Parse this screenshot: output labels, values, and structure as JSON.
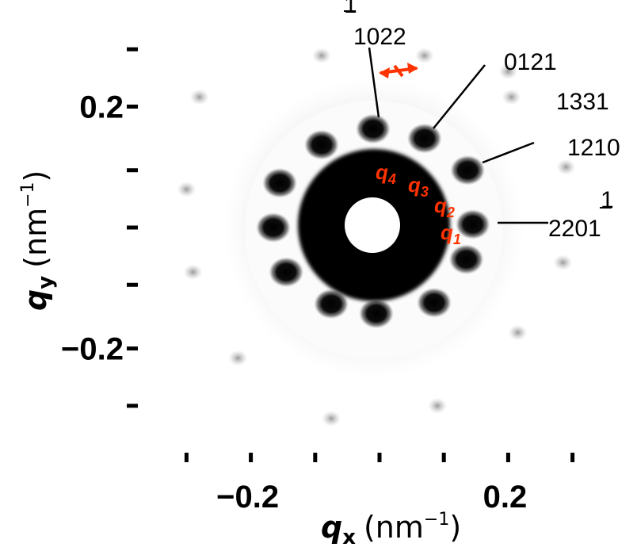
{
  "chart_data": {
    "type": "scatter",
    "title": "",
    "xlabel": {
      "symbol": "q",
      "subscript": "x",
      "unit": "(nm",
      "exponent": "−1",
      "close": ")"
    },
    "ylabel": {
      "symbol": "q",
      "subscript": "y",
      "unit": "(nm",
      "exponent": "−1",
      "close": ")"
    },
    "xlim": [
      -0.3,
      0.3
    ],
    "ylim": [
      -0.28,
      0.29
    ],
    "x_ticks": [
      -0.3,
      -0.2,
      -0.1,
      0,
      0.1,
      0.2,
      0.3
    ],
    "y_ticks": [
      -0.28,
      -0.19,
      -0.09,
      0,
      0.09,
      0.19,
      0.28
    ],
    "x_tick_labels": [
      {
        "value": -0.2,
        "text": "−0.2"
      },
      {
        "value": 0.2,
        "text": "0.2"
      }
    ],
    "y_tick_labels": [
      {
        "value": 0.19,
        "text": "0.2"
      },
      {
        "value": -0.19,
        "text": "−0.2"
      }
    ],
    "grid": false,
    "legend": "none",
    "colors": {
      "spots": "#000000",
      "annotation": "#ff3300",
      "beamstop": "#ffffff"
    },
    "diffraction_spots": [
      {
        "x": -0.01,
        "y": 0.155
      },
      {
        "x": 0.07,
        "y": 0.14
      },
      {
        "x": 0.137,
        "y": 0.09
      },
      {
        "x": 0.145,
        "y": 0.005
      },
      {
        "x": 0.135,
        "y": -0.05
      },
      {
        "x": 0.085,
        "y": -0.118
      },
      {
        "x": -0.005,
        "y": -0.135
      },
      {
        "x": -0.075,
        "y": -0.12
      },
      {
        "x": -0.145,
        "y": -0.07
      },
      {
        "x": -0.165,
        "y": 0.0
      },
      {
        "x": -0.155,
        "y": 0.07
      },
      {
        "x": -0.09,
        "y": 0.13
      },
      {
        "x": 0.07,
        "y": 0.27
      },
      {
        "x": -0.09,
        "y": 0.27
      },
      {
        "x": 0.2,
        "y": 0.245
      },
      {
        "x": 0.205,
        "y": 0.205
      },
      {
        "x": 0.29,
        "y": 0.095
      },
      {
        "x": 0.285,
        "y": -0.055
      },
      {
        "x": 0.215,
        "y": -0.165
      },
      {
        "x": -0.075,
        "y": -0.3
      },
      {
        "x": 0.09,
        "y": -0.28
      },
      {
        "x": -0.22,
        "y": -0.205
      },
      {
        "x": -0.3,
        "y": 0.06
      },
      {
        "x": -0.28,
        "y": 0.205
      },
      {
        "x": -0.29,
        "y": -0.07
      }
    ],
    "peak_annotations": [
      {
        "label": "1022",
        "overline": "1"
      },
      {
        "label": "0121",
        "overline": ""
      },
      {
        "label": "1331",
        "overline": ""
      },
      {
        "label": "1210",
        "overline": ""
      },
      {
        "label": "2201",
        "overline": "1"
      }
    ],
    "q_annotations": [
      {
        "symbol": "q",
        "subscript": "1"
      },
      {
        "symbol": "q",
        "subscript": "2"
      },
      {
        "symbol": "q",
        "subscript": "3"
      },
      {
        "symbol": "q",
        "subscript": "4"
      }
    ]
  }
}
